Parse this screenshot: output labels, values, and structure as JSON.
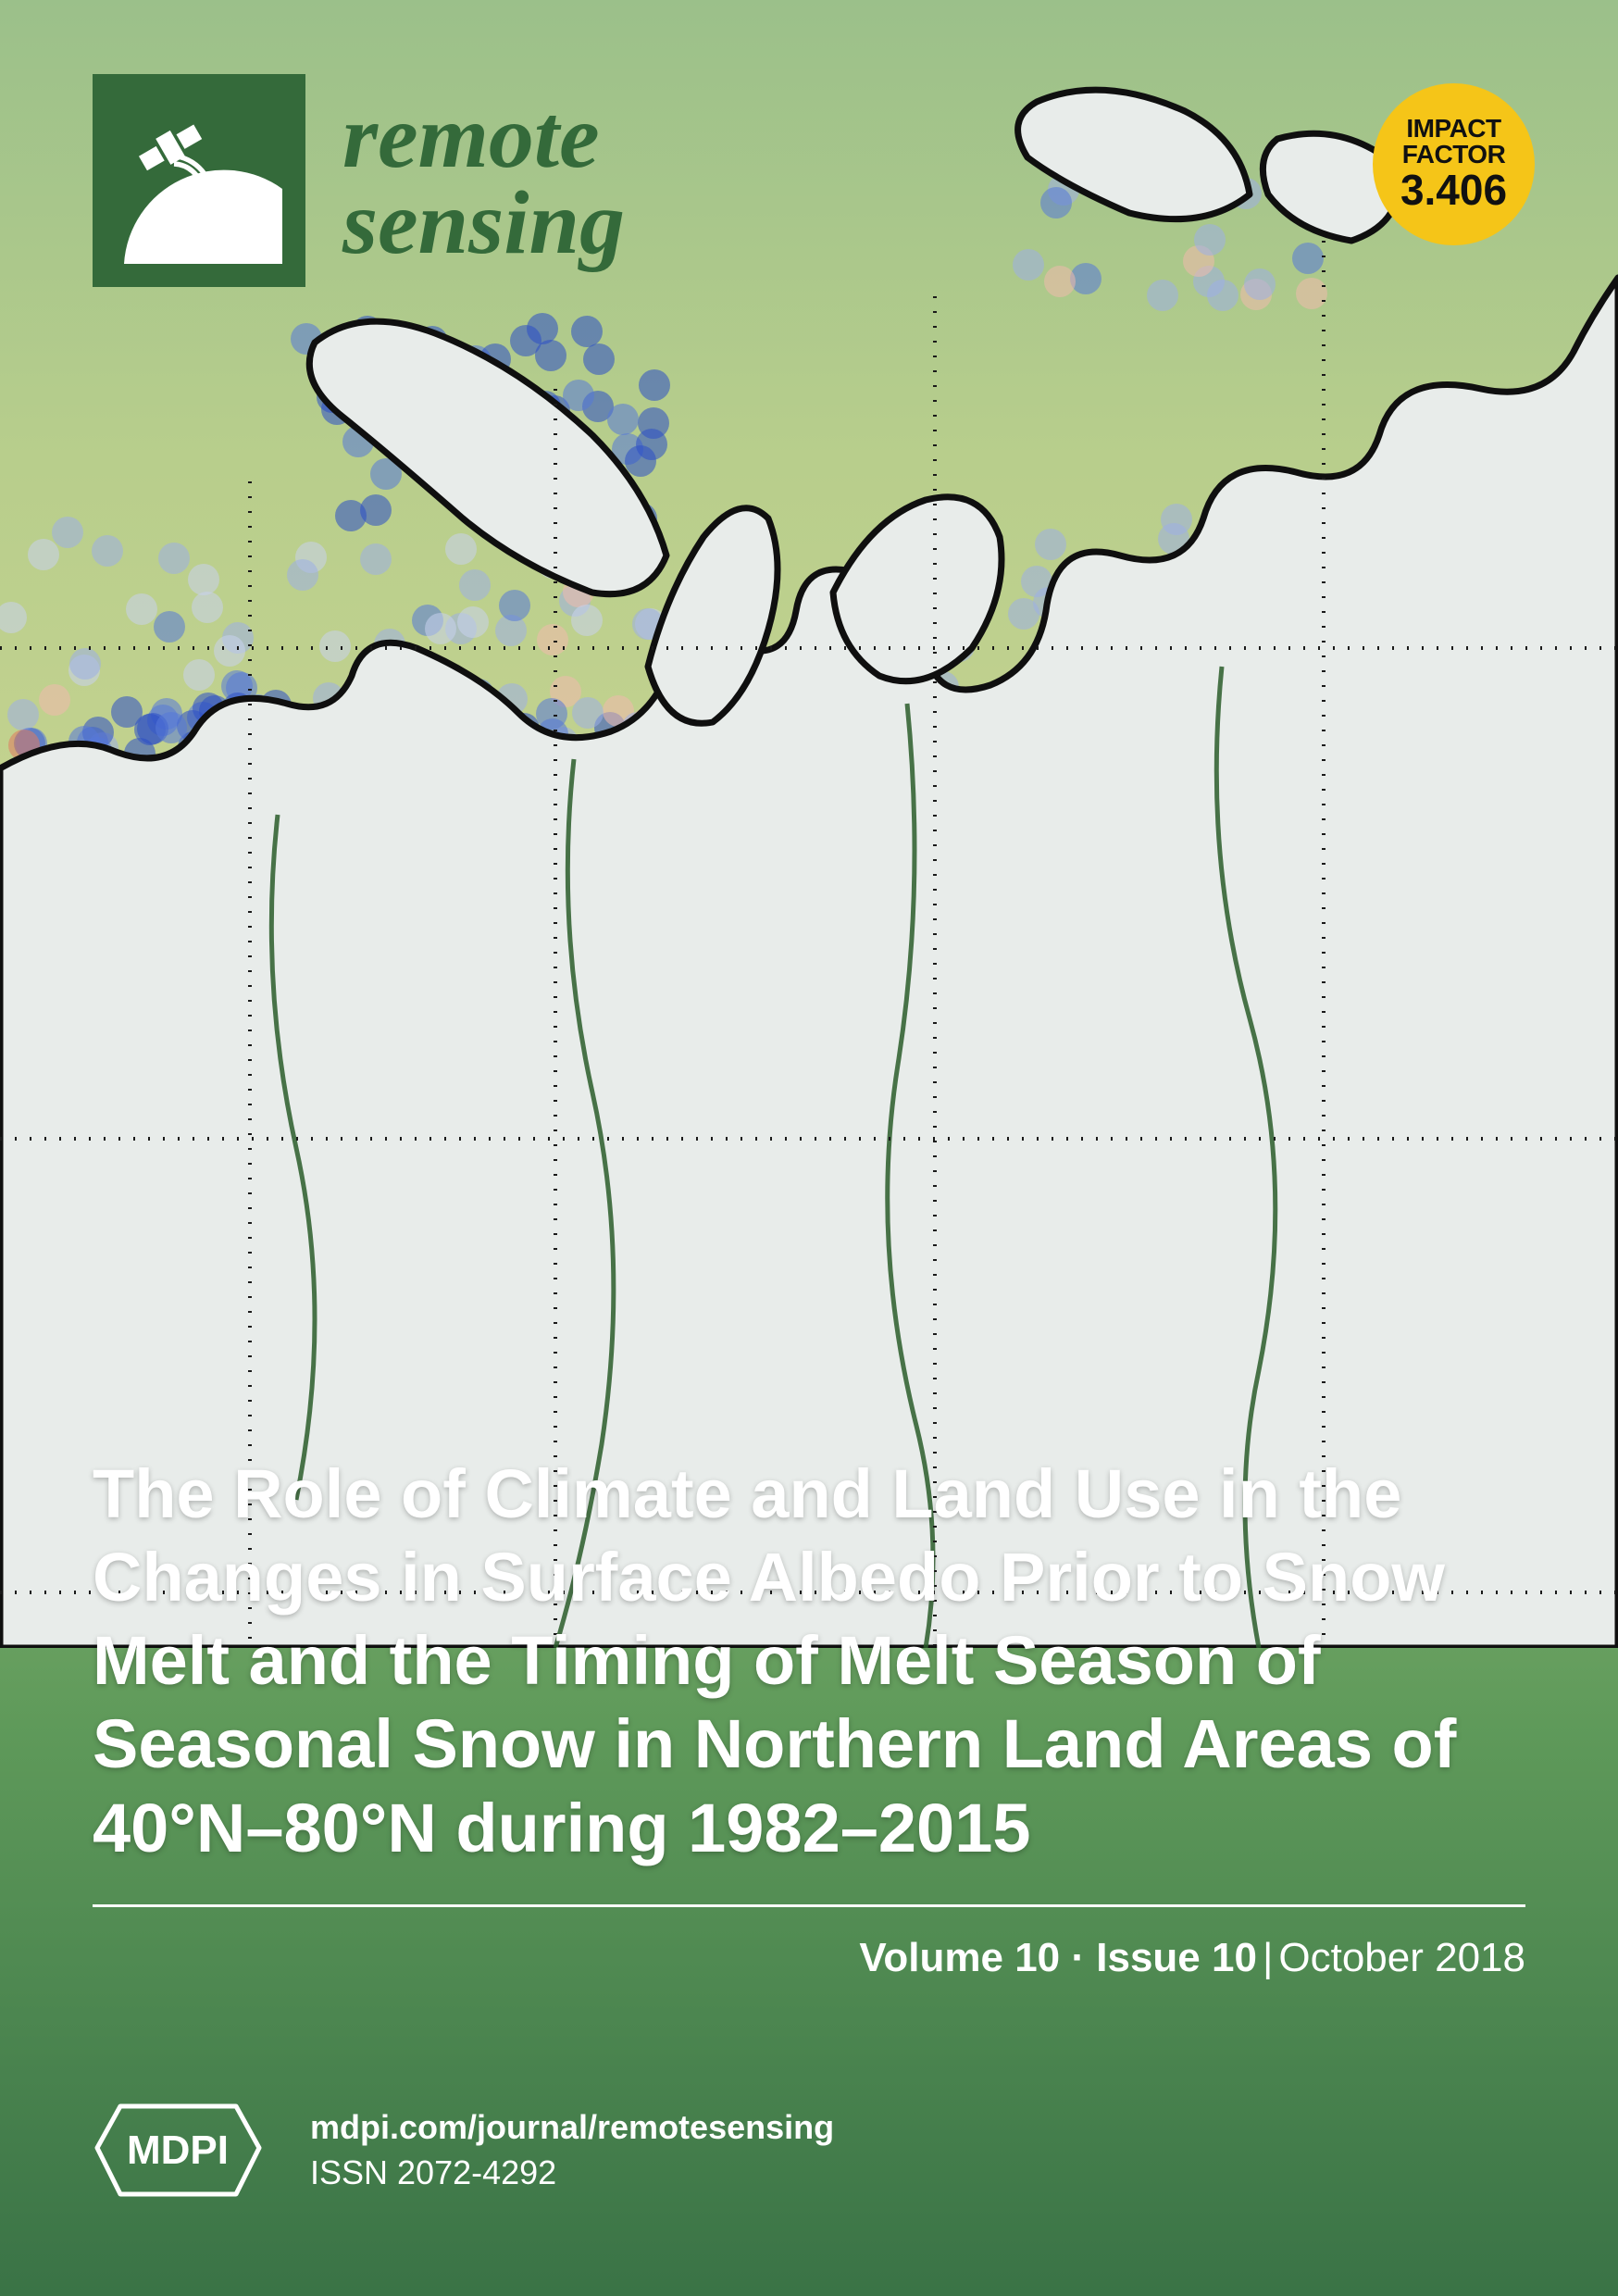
{
  "journal": {
    "name_line1": "remote",
    "name_line2": "sensing",
    "logo_bg": "#346a3a",
    "name_color": "#346a3a",
    "name_fontsize": 98
  },
  "impact_factor": {
    "label_line1": "IMPACT",
    "label_line2": "FACTOR",
    "value": "3.406",
    "badge_color": "#f5c518",
    "text_color": "#111111",
    "diameter": 175
  },
  "article": {
    "title": "The Role of Climate and Land Use in the Changes in Surface Albedo Prior to Snow Melt and the Timing of Melt Season of Seasonal Snow in Northern Land Areas of 40°N–80°N during 1982–2015",
    "title_color": "#ffffff",
    "title_fontsize": 74,
    "title_weight": 700
  },
  "issue": {
    "volume_label": "Volume 10",
    "issue_label": "Issue 10",
    "date": "October 2018",
    "separator_dot": " · ",
    "separator_pipe": " | "
  },
  "footer": {
    "publisher": "MDPI",
    "url": "mdpi.com/journal/remotesensing",
    "issn_label": "ISSN 2072-4292"
  },
  "cover_map": {
    "type": "scatter-map",
    "region": "Northern Eurasia / Arctic",
    "background_gradient": [
      "#9bc08a",
      "#b8ce8c",
      "#c3d28f",
      "#8fb879",
      "#5f9a5a",
      "#3a7346"
    ],
    "grid": {
      "style": "dotted",
      "color": "#1a1a1a",
      "horizontal_y": [
        700,
        1230,
        1720
      ],
      "vertical_x": [
        270,
        600,
        1010,
        1430
      ]
    },
    "coastline": {
      "stroke": "#0f0f0f",
      "stroke_width": 7,
      "fill_land": "#e8ecea"
    },
    "river_stroke": "#2a5d2a",
    "dots": {
      "radius": 17,
      "opacity": 0.55,
      "colors": {
        "strong_blue": "#2b4fc7",
        "blue": "#5678d8",
        "light_blue": "#9caee6",
        "pale_blue": "#c8d1ef",
        "pale_red": "#f0b9ad",
        "red": "#e07a5f",
        "strong_red": "#c9432a"
      },
      "bands": [
        {
          "y_range": [
            160,
            320
          ],
          "x_range": [
            1100,
            1420
          ],
          "density": 20,
          "mix": {
            "light_blue": 0.5,
            "pale_red": 0.3,
            "blue": 0.2
          }
        },
        {
          "y_range": [
            350,
            560
          ],
          "x_range": [
            330,
            720
          ],
          "density": 55,
          "mix": {
            "strong_blue": 0.7,
            "blue": 0.3
          }
        },
        {
          "y_range": [
            560,
            760
          ],
          "x_range": [
            0,
            1748
          ],
          "density": 90,
          "mix": {
            "light_blue": 0.35,
            "pale_blue": 0.35,
            "pale_red": 0.2,
            "blue": 0.1
          }
        },
        {
          "y_range": [
            760,
            980
          ],
          "x_range": [
            0,
            1748
          ],
          "density": 480,
          "mix": {
            "blue": 0.35,
            "strong_blue": 0.25,
            "light_blue": 0.2,
            "pale_red": 0.12,
            "red": 0.08
          }
        },
        {
          "y_range": [
            980,
            1200
          ],
          "x_range": [
            0,
            1748
          ],
          "density": 560,
          "mix": {
            "blue": 0.3,
            "strong_blue": 0.22,
            "red": 0.18,
            "pale_red": 0.18,
            "light_blue": 0.12
          }
        },
        {
          "y_range": [
            1200,
            1460
          ],
          "x_range": [
            0,
            1748
          ],
          "density": 640,
          "mix": {
            "blue": 0.32,
            "red": 0.2,
            "strong_blue": 0.18,
            "pale_red": 0.15,
            "light_blue": 0.15
          }
        },
        {
          "y_range": [
            1460,
            1780
          ],
          "x_range": [
            0,
            1748
          ],
          "density": 520,
          "mix": {
            "blue": 0.28,
            "light_blue": 0.22,
            "pale_red": 0.2,
            "red": 0.15,
            "strong_blue": 0.15
          }
        }
      ]
    }
  }
}
